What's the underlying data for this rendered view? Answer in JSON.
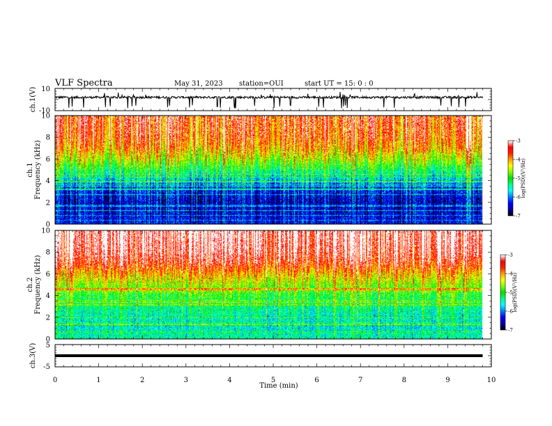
{
  "header": {
    "title": "VLF Spectra",
    "date": "May 31, 2023",
    "station": "station=OUI",
    "start_ut": "start  UT =   15: 0  : 0"
  },
  "colors": {
    "spectrum_scale": [
      "#000000",
      "#0000b0",
      "#0000ff",
      "#0080ff",
      "#00ffff",
      "#00ff80",
      "#00e000",
      "#80ff00",
      "#ffff00",
      "#ffa000",
      "#ff2000",
      "#ff0000",
      "#ffffff"
    ],
    "trace": "#000000"
  },
  "chart_data": [
    {
      "type": "line",
      "name": "waveform-ch1",
      "ylabel": "ch.1(V)",
      "ylim": [
        -10,
        10
      ],
      "yticks": [
        "10",
        "-10"
      ],
      "xlim": [
        0,
        10
      ],
      "baseline_v": 2,
      "noise_v": 1,
      "spike_min_v": -8,
      "spike_max_v": 7,
      "description_values": {
        "x_end_min": 9.8
      }
    },
    {
      "type": "heatmap",
      "name": "spectrogram-ch1",
      "ylabel": "ch.1\nFrequency (kHz)",
      "ylabel_lines": [
        "ch.1",
        "Frequency (kHz)"
      ],
      "ylim": [
        0,
        10
      ],
      "yticks": [
        "0",
        "2",
        "4",
        "6",
        "8",
        "10"
      ],
      "xlim": [
        0,
        10
      ],
      "x_end_min": 9.8,
      "colorbar": {
        "label": "log(PSD)(V²/Hz)",
        "ticks": [
          "-3",
          "-4",
          "-5",
          "-6",
          "-7"
        ],
        "range": [
          -7,
          -3
        ]
      },
      "profile_log_psd": {
        "freq_khz": [
          0,
          1,
          2,
          3,
          3.5,
          4,
          5,
          6,
          7,
          8,
          10
        ],
        "level": [
          -6.4,
          -6.5,
          -6.6,
          -6.4,
          -6.2,
          -5.8,
          -5.2,
          -4.6,
          -4.1,
          -3.8,
          -3.6
        ]
      }
    },
    {
      "type": "heatmap",
      "name": "spectrogram-ch2",
      "ylabel": "ch.2\nFrequency (kHz)",
      "ylabel_lines": [
        "ch.2",
        "Frequency (kHz)"
      ],
      "ylim": [
        0,
        10
      ],
      "yticks": [
        "0",
        "2",
        "4",
        "6",
        "8",
        "10"
      ],
      "xlim": [
        0,
        10
      ],
      "x_end_min": 9.8,
      "colorbar": {
        "label": "log(PSD)(V²/Hz)",
        "ticks": [
          "-3",
          "-4",
          "-5",
          "-6",
          "-7"
        ],
        "range": [
          -7,
          -3
        ]
      },
      "profile_log_psd": {
        "freq_khz": [
          0,
          1,
          2,
          3,
          4,
          5,
          6,
          7,
          8,
          10
        ],
        "level": [
          -5.4,
          -5.6,
          -5.5,
          -5.3,
          -5.0,
          -4.6,
          -4.1,
          -3.5,
          -3.2,
          -3.0
        ]
      }
    },
    {
      "type": "line",
      "name": "waveform-ch3",
      "ylabel": "ch.3(V)",
      "ylim": [
        -5,
        5
      ],
      "yticks": [
        "5",
        "-5"
      ],
      "xlim": [
        0,
        10
      ],
      "x_end_min": 9.8,
      "constant_v": 0
    }
  ],
  "xaxis": {
    "label": "Time  (min)",
    "ticks": [
      "0",
      "1",
      "2",
      "3",
      "4",
      "5",
      "6",
      "7",
      "8",
      "9",
      "10"
    ]
  }
}
